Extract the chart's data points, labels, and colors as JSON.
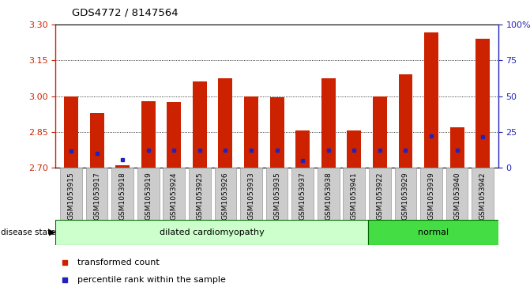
{
  "title": "GDS4772 / 8147564",
  "samples": [
    "GSM1053915",
    "GSM1053917",
    "GSM1053918",
    "GSM1053919",
    "GSM1053924",
    "GSM1053925",
    "GSM1053926",
    "GSM1053933",
    "GSM1053935",
    "GSM1053937",
    "GSM1053938",
    "GSM1053941",
    "GSM1053922",
    "GSM1053929",
    "GSM1053939",
    "GSM1053940",
    "GSM1053942"
  ],
  "red_values": [
    3.0,
    2.93,
    2.71,
    2.98,
    2.975,
    3.06,
    3.075,
    3.0,
    2.995,
    2.855,
    3.075,
    2.855,
    3.0,
    3.09,
    3.265,
    2.87,
    3.24
  ],
  "blue_values": [
    2.77,
    2.76,
    2.735,
    2.775,
    2.775,
    2.775,
    2.775,
    2.775,
    2.775,
    2.73,
    2.775,
    2.775,
    2.775,
    2.775,
    2.835,
    2.775,
    2.83
  ],
  "disease_groups": [
    {
      "label": "dilated cardiomyopathy",
      "n_samples": 12,
      "color": "#ccffcc",
      "edge_color": "#008800"
    },
    {
      "label": "normal",
      "n_samples": 5,
      "color": "#44dd44",
      "edge_color": "#006600"
    }
  ],
  "ylim_left": [
    2.7,
    3.3
  ],
  "ylim_right": [
    0,
    100
  ],
  "yticks_left": [
    2.7,
    2.85,
    3.0,
    3.15,
    3.3
  ],
  "ytick_labels_right": [
    "0",
    "25",
    "50",
    "75",
    "100%"
  ],
  "yticks_right": [
    0,
    25,
    50,
    75,
    100
  ],
  "bar_color": "#cc2200",
  "dot_color": "#2222bb",
  "bg_color": "#cccccc",
  "plot_bg": "#ffffff",
  "left_axis_color": "#cc2200",
  "right_axis_color": "#2222bb",
  "legend_red": "transformed count",
  "legend_blue": "percentile rank within the sample",
  "disease_state_label": "disease state"
}
